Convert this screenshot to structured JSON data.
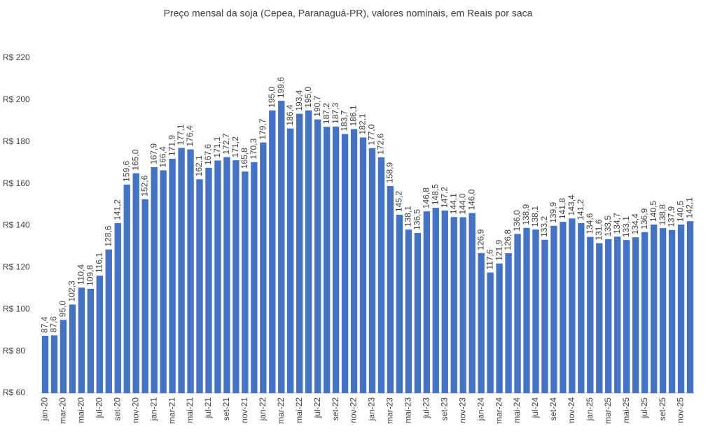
{
  "chart_data": {
    "type": "bar",
    "title": "Preço mensal da soja (Cepea, Paranaguá-PR), valores nominais, em Reais por saca",
    "categories": [
      "jan-20",
      null,
      "mar-20",
      null,
      "mai-20",
      null,
      "jul-20",
      null,
      "set-20",
      null,
      "nov-20",
      null,
      "jan-21",
      null,
      "mar-21",
      null,
      "mai-21",
      null,
      "jul-21",
      null,
      "set-21",
      null,
      "nov-21",
      null,
      "jan-22",
      null,
      "mar-22",
      null,
      "mai-22",
      null,
      "jul-22",
      null,
      "set-22",
      null,
      "nov-22",
      null,
      "jan-23",
      null,
      "mar-23",
      null,
      "mai-23",
      null,
      "jul-23",
      null,
      "set-23",
      null,
      "nov-23",
      null,
      "jan-24",
      null,
      "mar-24",
      null,
      "mai-24",
      null,
      "jul-24",
      null,
      "set-24",
      null,
      "nov-24",
      null,
      "jan-25",
      null,
      "mar-25",
      null,
      "mai-25",
      null,
      "jul-25",
      null,
      "set-25",
      null,
      "nov-25",
      null
    ],
    "values": [
      87.4,
      87.6,
      95.0,
      102.3,
      110.4,
      109.8,
      116.1,
      128.6,
      141.2,
      159.6,
      165.0,
      152.6,
      167.9,
      166.4,
      171.9,
      177.1,
      176.4,
      162.1,
      167.6,
      171.1,
      172.7,
      171.2,
      165.8,
      170.3,
      179.7,
      195.0,
      199.6,
      186.4,
      193.4,
      195.0,
      190.7,
      187.2,
      187.3,
      183.7,
      186.1,
      182.1,
      177.0,
      172.6,
      158.9,
      145.2,
      138.1,
      136.5,
      146.8,
      148.5,
      147.2,
      144.1,
      144.0,
      146.0,
      126.9,
      117.6,
      121.9,
      126.8,
      136.0,
      138.9,
      138.1,
      133.2,
      139.9,
      141.8,
      143.4,
      141.2,
      134.6,
      131.6,
      133.5,
      134.7,
      133.1,
      134.4,
      136.9,
      140.5,
      138.8,
      137.9,
      140.5,
      142.1
    ],
    "value_labels": [
      "87,4",
      "87,6",
      "95,0",
      "102,3",
      "110,4",
      "109,8",
      "116,1",
      "128,6",
      "141,2",
      "159,6",
      "165,0",
      "152,6",
      "167,9",
      "166,4",
      "171,9",
      "177,1",
      "176,4",
      "162,1",
      "167,6",
      "171,1",
      "172,7",
      "171,2",
      "165,8",
      "170,3",
      "179,7",
      "195,0",
      "199,6",
      "186,4",
      "193,4",
      "195,0",
      "190,7",
      "187,2",
      "187,3",
      "183,7",
      "186,1",
      "182,1",
      "177,0",
      "172,6",
      "158,9",
      "145,2",
      "138,1",
      "136,5",
      "146,8",
      "148,5",
      "147,2",
      "144,1",
      "144,0",
      "146,0",
      "126,9",
      "117,6",
      "121,9",
      "126,8",
      "136,0",
      "138,9",
      "138,1",
      "133,2",
      "139,9",
      "141,8",
      "143,4",
      "141,2",
      "134,6",
      "131,6",
      "133,5",
      "134,7",
      "133,1",
      "134,4",
      "136,9",
      "140,5",
      "138,8",
      "137,9",
      "140,5",
      "142,1"
    ],
    "color": "#4472c4",
    "ylim": [
      60,
      220
    ],
    "yticks": [
      {
        "value": 60,
        "label": "R$ 60"
      },
      {
        "value": 80,
        "label": "R$ 80"
      },
      {
        "value": 100,
        "label": "R$ 100"
      },
      {
        "value": 120,
        "label": "R$ 120"
      },
      {
        "value": 140,
        "label": "R$ 140"
      },
      {
        "value": 160,
        "label": "R$ 160"
      },
      {
        "value": 180,
        "label": "R$ 180"
      },
      {
        "value": 200,
        "label": "R$ 200"
      },
      {
        "value": 220,
        "label": "R$ 220"
      }
    ],
    "grid": false
  }
}
